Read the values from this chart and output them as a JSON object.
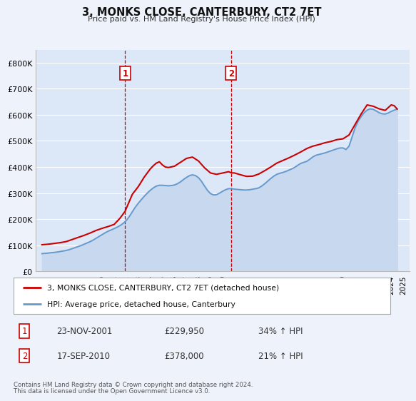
{
  "title": "3, MONKS CLOSE, CANTERBURY, CT2 7ET",
  "subtitle": "Price paid vs. HM Land Registry's House Price Index (HPI)",
  "ylabel_ticks": [
    "£0",
    "£100K",
    "£200K",
    "£300K",
    "£400K",
    "£500K",
    "£600K",
    "£700K",
    "£800K"
  ],
  "ytick_values": [
    0,
    100000,
    200000,
    300000,
    400000,
    500000,
    600000,
    700000,
    800000
  ],
  "ylim": [
    0,
    850000
  ],
  "xlim_start": 1994.5,
  "xlim_end": 2025.5,
  "background_color": "#eef2fb",
  "plot_bg_color": "#dce8f8",
  "red_line_color": "#cc0000",
  "blue_line_color": "#6699cc",
  "blue_fill_color": "#c8d8ee",
  "vline_color": "#cc0000",
  "marker1_year": 2001.9,
  "marker2_year": 2010.7,
  "legend_line1": "3, MONKS CLOSE, CANTERBURY, CT2 7ET (detached house)",
  "legend_line2": "HPI: Average price, detached house, Canterbury",
  "table_row1": [
    "1",
    "23-NOV-2001",
    "£229,950",
    "34% ↑ HPI"
  ],
  "table_row2": [
    "2",
    "17-SEP-2010",
    "£378,000",
    "21% ↑ HPI"
  ],
  "footer1": "Contains HM Land Registry data © Crown copyright and database right 2024.",
  "footer2": "This data is licensed under the Open Government Licence v3.0.",
  "hpi_data": {
    "years": [
      1995.0,
      1995.25,
      1995.5,
      1995.75,
      1996.0,
      1996.25,
      1996.5,
      1996.75,
      1997.0,
      1997.25,
      1997.5,
      1997.75,
      1998.0,
      1998.25,
      1998.5,
      1998.75,
      1999.0,
      1999.25,
      1999.5,
      1999.75,
      2000.0,
      2000.25,
      2000.5,
      2000.75,
      2001.0,
      2001.25,
      2001.5,
      2001.75,
      2002.0,
      2002.25,
      2002.5,
      2002.75,
      2003.0,
      2003.25,
      2003.5,
      2003.75,
      2004.0,
      2004.25,
      2004.5,
      2004.75,
      2005.0,
      2005.25,
      2005.5,
      2005.75,
      2006.0,
      2006.25,
      2006.5,
      2006.75,
      2007.0,
      2007.25,
      2007.5,
      2007.75,
      2008.0,
      2008.25,
      2008.5,
      2008.75,
      2009.0,
      2009.25,
      2009.5,
      2009.75,
      2010.0,
      2010.25,
      2010.5,
      2010.75,
      2011.0,
      2011.25,
      2011.5,
      2011.75,
      2012.0,
      2012.25,
      2012.5,
      2012.75,
      2013.0,
      2013.25,
      2013.5,
      2013.75,
      2014.0,
      2014.25,
      2014.5,
      2014.75,
      2015.0,
      2015.25,
      2015.5,
      2015.75,
      2016.0,
      2016.25,
      2016.5,
      2016.75,
      2017.0,
      2017.25,
      2017.5,
      2017.75,
      2018.0,
      2018.25,
      2018.5,
      2018.75,
      2019.0,
      2019.25,
      2019.5,
      2019.75,
      2020.0,
      2020.25,
      2020.5,
      2020.75,
      2021.0,
      2021.25,
      2021.5,
      2021.75,
      2022.0,
      2022.25,
      2022.5,
      2022.75,
      2023.0,
      2023.25,
      2023.5,
      2023.75,
      2024.0,
      2024.25,
      2024.5
    ],
    "values": [
      68000,
      69000,
      70000,
      71500,
      72500,
      74000,
      76000,
      78000,
      80000,
      83000,
      87000,
      91000,
      95000,
      99000,
      104000,
      109000,
      114000,
      120000,
      127000,
      134000,
      141000,
      148000,
      154000,
      159000,
      164000,
      169500,
      176000,
      184000,
      195000,
      210000,
      228000,
      246000,
      261000,
      275000,
      288000,
      300000,
      311000,
      320000,
      327000,
      330000,
      330000,
      329000,
      328000,
      329000,
      331000,
      336000,
      343000,
      352000,
      360000,
      367000,
      370000,
      367000,
      359000,
      345000,
      327000,
      310000,
      298000,
      293000,
      294000,
      300000,
      307000,
      313000,
      317000,
      317000,
      315000,
      314000,
      313000,
      312000,
      312000,
      313000,
      315000,
      317000,
      320000,
      327000,
      336000,
      346000,
      356000,
      365000,
      372000,
      376000,
      379000,
      383000,
      388000,
      393000,
      399000,
      407000,
      414000,
      418000,
      422000,
      430000,
      439000,
      445000,
      448000,
      451000,
      454000,
      458000,
      462000,
      466000,
      470000,
      473000,
      473000,
      467000,
      480000,
      515000,
      550000,
      575000,
      593000,
      608000,
      618000,
      623000,
      621000,
      615000,
      608000,
      604000,
      603000,
      607000,
      613000,
      618000,
      622000
    ]
  },
  "red_line_data": {
    "years": [
      1995.0,
      1995.5,
      1996.0,
      1996.5,
      1997.0,
      1997.5,
      1998.0,
      1998.5,
      1999.0,
      1999.5,
      2000.0,
      2000.5,
      2001.0,
      2001.5,
      2001.9,
      2002.5,
      2003.0,
      2003.5,
      2004.0,
      2004.25,
      2004.5,
      2004.75,
      2005.0,
      2005.25,
      2005.5,
      2006.0,
      2006.5,
      2007.0,
      2007.5,
      2008.0,
      2008.5,
      2009.0,
      2009.5,
      2010.0,
      2010.5,
      2010.7,
      2011.0,
      2011.5,
      2012.0,
      2012.5,
      2013.0,
      2013.5,
      2014.0,
      2014.5,
      2015.0,
      2015.5,
      2016.0,
      2016.5,
      2017.0,
      2017.5,
      2018.0,
      2018.5,
      2019.0,
      2019.5,
      2020.0,
      2020.5,
      2021.0,
      2021.5,
      2022.0,
      2022.5,
      2023.0,
      2023.5,
      2024.0,
      2024.25,
      2024.5
    ],
    "values": [
      102000,
      104000,
      107000,
      110000,
      114000,
      122000,
      130000,
      138000,
      147000,
      157000,
      165000,
      172000,
      180000,
      205000,
      229950,
      295000,
      325000,
      362000,
      393000,
      405000,
      415000,
      420000,
      408000,
      400000,
      398000,
      403000,
      418000,
      433000,
      438000,
      423000,
      397000,
      377000,
      372000,
      377000,
      382000,
      378000,
      377000,
      370000,
      364000,
      365000,
      373000,
      386000,
      400000,
      415000,
      425000,
      435000,
      446000,
      458000,
      471000,
      480000,
      486000,
      493000,
      498000,
      505000,
      508000,
      523000,
      563000,
      603000,
      638000,
      633000,
      623000,
      617000,
      638000,
      635000,
      622000
    ]
  },
  "xtick_years": [
    1995,
    1996,
    1997,
    1998,
    1999,
    2000,
    2001,
    2002,
    2003,
    2004,
    2005,
    2006,
    2007,
    2008,
    2009,
    2010,
    2011,
    2012,
    2013,
    2014,
    2015,
    2016,
    2017,
    2018,
    2019,
    2020,
    2021,
    2022,
    2023,
    2024,
    2025
  ]
}
